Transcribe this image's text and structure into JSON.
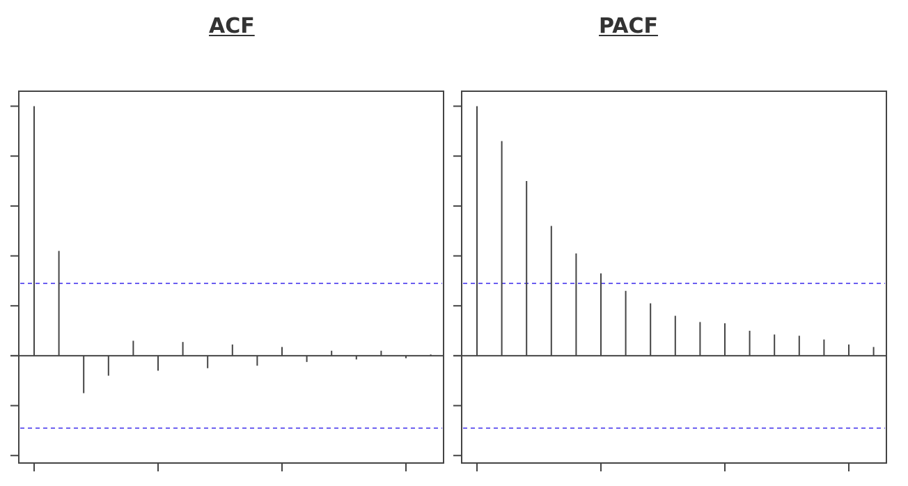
{
  "chart_data": [
    {
      "type": "bar",
      "title": "ACF",
      "x": [
        0,
        1,
        2,
        3,
        4,
        5,
        6,
        7,
        8,
        9,
        10,
        11,
        12,
        13,
        14,
        15,
        16
      ],
      "values": [
        1.0,
        0.42,
        -0.15,
        -0.08,
        0.06,
        -0.06,
        0.055,
        -0.05,
        0.045,
        -0.04,
        0.035,
        -0.025,
        0.02,
        -0.015,
        0.02,
        -0.01,
        0.005
      ],
      "xlim": [
        -0.6,
        16.7
      ],
      "ylim": [
        -0.43,
        1.06
      ],
      "ytick_values": [
        -0.4,
        -0.2,
        0,
        0.2,
        0.4,
        0.6,
        0.8,
        1.0
      ],
      "xtick_values": [
        0,
        5,
        10,
        15
      ],
      "confidence_bound": 0.29,
      "grid": false
    },
    {
      "type": "bar",
      "title": "PACF",
      "x": [
        0,
        1,
        2,
        3,
        4,
        5,
        6,
        7,
        8,
        9,
        10,
        11,
        12,
        13,
        14,
        15,
        16
      ],
      "values": [
        1.0,
        0.86,
        0.7,
        0.52,
        0.41,
        0.33,
        0.26,
        0.21,
        0.16,
        0.135,
        0.13,
        0.1,
        0.085,
        0.08,
        0.065,
        0.045,
        0.035
      ],
      "xlim": [
        -0.6,
        16.7
      ],
      "ylim": [
        -0.43,
        1.06
      ],
      "ytick_values": [
        -0.4,
        -0.2,
        0,
        0.2,
        0.4,
        0.6,
        0.8,
        1.0
      ],
      "xtick_values": [
        0,
        5,
        10,
        15
      ],
      "confidence_bound": 0.29,
      "grid": false
    }
  ],
  "colors": {
    "stem": "#444444",
    "axis": "#444444",
    "confidence": "#6a5df0",
    "title": "#333333"
  }
}
